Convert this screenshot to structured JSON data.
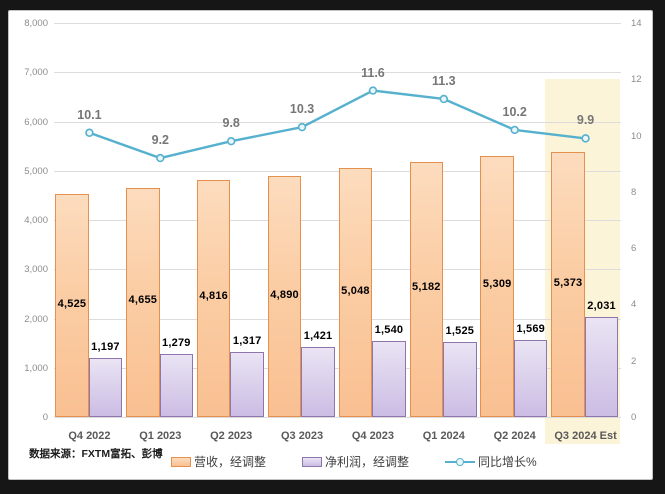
{
  "source_note": "数据来源：FXTM富拓、彭博",
  "legend": {
    "items": [
      {
        "label": "营收，经调整",
        "swatch": "orange-bar-swatch"
      },
      {
        "label": "净利润，经调整",
        "swatch": "purple-bar-swatch"
      },
      {
        "label": "同比增长%",
        "swatch": "line-marker-swatch"
      }
    ]
  },
  "chart_data": {
    "type": "bar",
    "subtype": "combo-bar-line-dual-axis",
    "categories": [
      "Q4 2022",
      "Q1 2023",
      "Q2 2023",
      "Q3 2023",
      "Q4 2023",
      "Q1 2024",
      "Q2 2024",
      "Q3 2024 Est"
    ],
    "series": [
      {
        "name": "营收，经调整",
        "type": "bar",
        "axis": "left",
        "values": [
          4525,
          4655,
          4816,
          4890,
          5048,
          5182,
          5309,
          5373
        ],
        "labels": [
          "4,525",
          "4,655",
          "4,816",
          "4,890",
          "5,048",
          "5,182",
          "5,309",
          "5,373"
        ],
        "label_placement": "inside-center",
        "fill_top": "#fcdcbe",
        "fill_bottom": "#f9c092",
        "border": "#e69050"
      },
      {
        "name": "净利润，经调整",
        "type": "bar",
        "axis": "left",
        "values": [
          1197,
          1279,
          1317,
          1421,
          1540,
          1525,
          1569,
          2031
        ],
        "labels": [
          "1,197",
          "1,279",
          "1,317",
          "1,421",
          "1,540",
          "1,525",
          "1,569",
          "2,031"
        ],
        "label_placement": "above",
        "fill_top": "#eae4f4",
        "fill_bottom": "#ccbde4",
        "border": "#8e76ad"
      },
      {
        "name": "同比增长%",
        "type": "line",
        "axis": "right",
        "values": [
          10.1,
          9.2,
          9.8,
          10.3,
          11.6,
          11.3,
          10.2,
          9.9
        ],
        "labels": [
          "10.1",
          "9.2",
          "9.8",
          "10.3",
          "11.6",
          "11.3",
          "10.2",
          "9.9"
        ],
        "color": "#55b1cd",
        "marker": "circle-open"
      }
    ],
    "left_axis": {
      "min": 0,
      "max": 8000,
      "step": 1000,
      "tick_labels": [
        "0",
        "1,000",
        "2,000",
        "3,000",
        "4,000",
        "5,000",
        "6,000",
        "7,000",
        "8,000"
      ]
    },
    "right_axis": {
      "min": 0,
      "max": 14,
      "step": 2,
      "tick_labels": [
        "0",
        "2",
        "4",
        "6",
        "8",
        "10",
        "12",
        "14"
      ]
    },
    "highlight": {
      "category": "Q3 2024 Est",
      "category_index": 7,
      "color": "#fcf4d8",
      "top_at_right_value": 12
    },
    "grid": "horizontal",
    "gridline_color": "#dcdcdc",
    "legend_position": "bottom"
  }
}
